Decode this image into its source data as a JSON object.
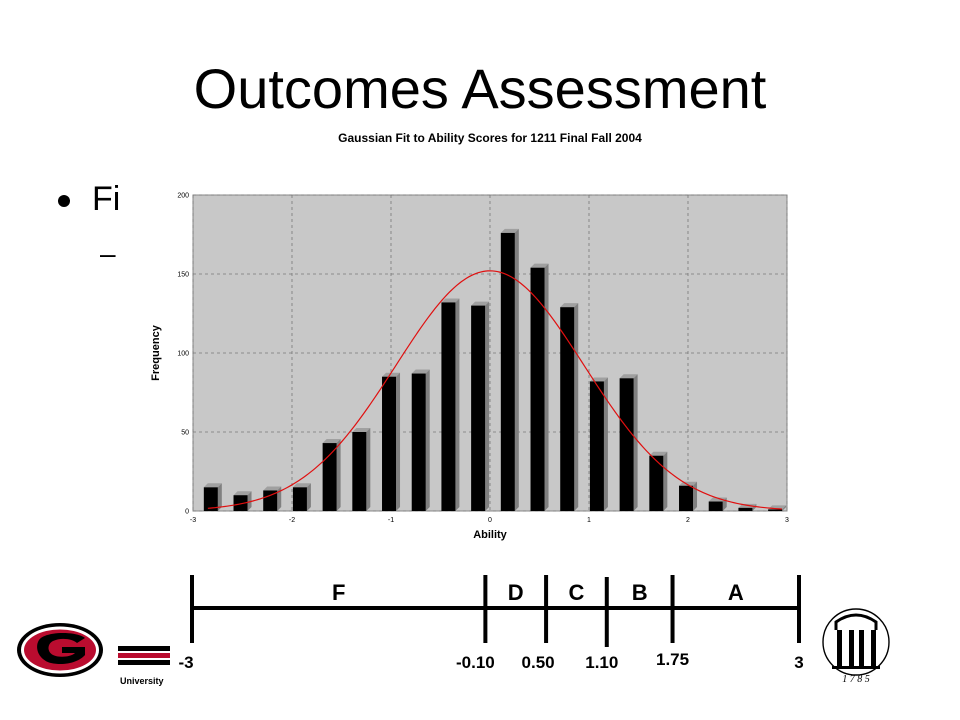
{
  "slide": {
    "title": "Outcomes Assessment",
    "bullet": "Fi",
    "sub_bullet": "–"
  },
  "colors": {
    "plot_bg": "#c8c8c8",
    "bar_fill": "#000000",
    "bar_shadow": "#808080",
    "curve": "#e01010",
    "brand_red": "#ba0c2f"
  },
  "chart_data": {
    "type": "bar",
    "title": "Gaussian Fit to Ability Scores for 1211 Final Fall 2004",
    "xlabel": "Ability",
    "ylabel": "Frequency",
    "xlim": [
      -3,
      3
    ],
    "ylim": [
      0,
      200
    ],
    "grid": true,
    "xticks": [
      "-3",
      "-2",
      "-1",
      "0",
      "1",
      "2",
      "3"
    ],
    "yticks": [
      "0",
      "50",
      "100",
      "150",
      "200"
    ],
    "bars": {
      "x": [
        -2.82,
        -2.52,
        -2.22,
        -1.92,
        -1.62,
        -1.32,
        -1.02,
        -0.72,
        -0.42,
        -0.12,
        0.18,
        0.48,
        0.78,
        1.08,
        1.38,
        1.68,
        1.98,
        2.28,
        2.58,
        2.88
      ],
      "values": [
        15,
        10,
        13,
        15,
        43,
        50,
        85,
        87,
        132,
        130,
        176,
        154,
        129,
        82,
        84,
        35,
        16,
        6,
        2,
        1
      ]
    },
    "gaussian_fit": {
      "peak": 152,
      "mean": 0.0,
      "sigma": 0.95
    }
  },
  "grade_scale": {
    "grades": [
      "F",
      "D",
      "C",
      "B",
      "A"
    ],
    "cutoffs": [
      "-3",
      "-0.10",
      "0.50",
      "1.10",
      "1.75",
      "3"
    ]
  },
  "footer": {
    "university_label": "University",
    "seal_year": "1 7 8 5"
  }
}
